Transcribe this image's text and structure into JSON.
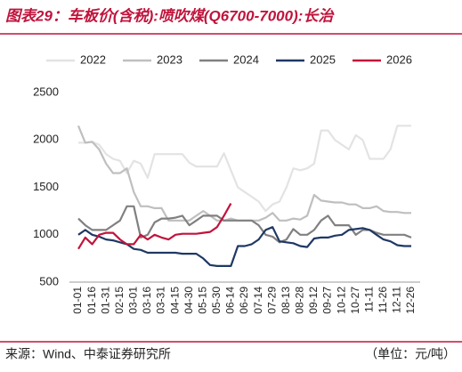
{
  "title": "图表29：车板价(含税):喷吹煤(Q6700-7000):长治",
  "footer": {
    "source": "来源：Wind、中泰证券研究所",
    "unit": "（单位：元/吨）"
  },
  "chart_data": {
    "type": "line",
    "categories": [
      "01-01",
      null,
      "01-16",
      null,
      "01-31",
      null,
      "02-15",
      null,
      "03-01",
      null,
      "03-16",
      null,
      "03-31",
      null,
      "04-15",
      null,
      "04-30",
      null,
      "05-15",
      null,
      "05-30",
      null,
      "06-14",
      null,
      "06-29",
      null,
      "07-14",
      null,
      "07-29",
      null,
      "08-13",
      null,
      "08-28",
      null,
      "09-12",
      null,
      "09-27",
      null,
      "10-12",
      null,
      "10-27",
      null,
      "11-11",
      null,
      "11-26",
      null,
      "12-11",
      null,
      "12-26"
    ],
    "series": [
      {
        "name": "2022",
        "color": "#e3e3e3",
        "values": [
          1970,
          1970,
          1980,
          1950,
          1850,
          1800,
          1780,
          1650,
          1780,
          1750,
          1600,
          1850,
          1850,
          1850,
          1850,
          1850,
          1760,
          1720,
          1720,
          1720,
          1720,
          1860,
          1680,
          1500,
          1450,
          1400,
          1350,
          1250,
          1320,
          1350,
          1500,
          1700,
          1680,
          1700,
          1750,
          2100,
          2100,
          2000,
          1950,
          1900,
          2050,
          2000,
          1800,
          1800,
          1800,
          1900,
          2150,
          2150,
          2150
        ]
      },
      {
        "name": "2023",
        "color": "#bfbfbf",
        "values": [
          2150,
          1970,
          1980,
          1900,
          1750,
          1650,
          1650,
          1700,
          1450,
          1300,
          1300,
          1280,
          1280,
          1150,
          1150,
          1150,
          1150,
          1200,
          1250,
          1200,
          1150,
          1150,
          1170,
          1150,
          1150,
          1150,
          1150,
          1180,
          1230,
          1150,
          1150,
          1170,
          1160,
          1200,
          1420,
          1360,
          1350,
          1340,
          1340,
          1320,
          1320,
          1280,
          1280,
          1300,
          1250,
          1240,
          1240,
          1230,
          1230
        ]
      },
      {
        "name": "2024",
        "color": "#808080",
        "values": [
          1170,
          1100,
          1050,
          1050,
          1050,
          1100,
          1150,
          1300,
          1300,
          970,
          1000,
          1130,
          1170,
          1170,
          1180,
          1200,
          1100,
          1150,
          1200,
          1200,
          1200,
          1150,
          1150,
          1150,
          1150,
          1150,
          1100,
          1000,
          980,
          920,
          950,
          1060,
          1000,
          1000,
          1050,
          1150,
          1200,
          1100,
          1100,
          1100,
          1000,
          1050,
          1050,
          1020,
          1000,
          1000,
          1000,
          1000,
          970
        ]
      },
      {
        "name": "2025",
        "color": "#1f3864",
        "values": [
          1000,
          1050,
          1000,
          980,
          950,
          940,
          920,
          900,
          850,
          840,
          810,
          810,
          810,
          810,
          810,
          800,
          800,
          800,
          750,
          680,
          670,
          670,
          670,
          880,
          880,
          900,
          950,
          1050,
          1080,
          930,
          920,
          910,
          880,
          870,
          960,
          970,
          970,
          990,
          1000,
          1050,
          1060,
          1070,
          1050,
          1000,
          950,
          930,
          890,
          880,
          880
        ]
      },
      {
        "name": "2026",
        "color": "#c0143c",
        "values": [
          850,
          970,
          900,
          1000,
          1020,
          1020,
          950,
          900,
          900,
          1000,
          950,
          1000,
          970,
          950,
          1000,
          1010,
          1010,
          1010,
          1020,
          1030,
          1080,
          1200,
          1330,
          null,
          null,
          null,
          null,
          null,
          null,
          null,
          null,
          null,
          null,
          null,
          null,
          null,
          null,
          null,
          null,
          null,
          null,
          null,
          null,
          null,
          null,
          null,
          null,
          null,
          null
        ]
      }
    ],
    "ylim": [
      500,
      2500
    ],
    "yticks": [
      500,
      1000,
      1500,
      2000,
      2500
    ],
    "grid": false,
    "legend": "top"
  }
}
